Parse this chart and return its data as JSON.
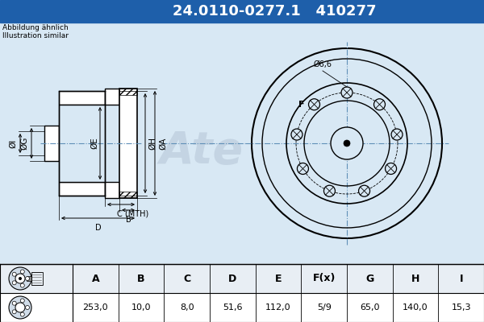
{
  "title_text": "24.0110-0277.1   410277",
  "title_bg": "#1e5faa",
  "title_color": "#ffffff",
  "bg_color": "#d8e8f4",
  "note_line1": "Abbildung ähnlich",
  "note_line2": "Illustration similar",
  "table_headers": [
    "A",
    "B",
    "C",
    "D",
    "E",
    "F(x)",
    "G",
    "H",
    "I"
  ],
  "table_values": [
    "253,0",
    "10,0",
    "8,0",
    "51,6",
    "112,0",
    "5/9",
    "65,0",
    "140,0",
    "15,3"
  ],
  "label_A": "ØA",
  "label_E": "ØE",
  "label_H": "ØH",
  "label_G": "ØG",
  "label_I": "ØI",
  "label_B": "B",
  "label_C": "C (MTH)",
  "label_D": "D",
  "label_F": "F",
  "label_hole": "Ø6,6",
  "line_color": "#000000",
  "crosshair_color": "#6090b8",
  "table_header_bg": "#ffffff",
  "table_value_bg": "#ffffff",
  "watermark_color": "#b8c8d8"
}
